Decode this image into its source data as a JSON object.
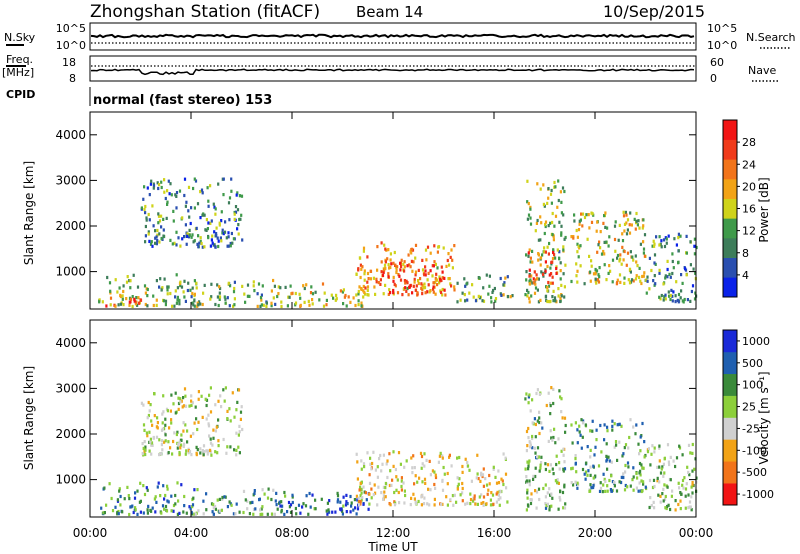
{
  "header": {
    "station": "Zhongshan Station (fitACF)",
    "beam": "Beam 14",
    "date": "10/Sep/2015"
  },
  "noise_panel": {
    "left_label": "N.Sky",
    "left_ticks": [
      "10^5",
      "10^0"
    ],
    "right_ticks": [
      "10^5",
      "10^0"
    ],
    "right_label": "N.Search"
  },
  "freq_panel": {
    "left_label_1": "Freq.",
    "left_label_2": "[MHz]",
    "left_ticks": [
      "18",
      "8"
    ],
    "right_ticks": [
      "60",
      "0"
    ],
    "right_label": "Nave"
  },
  "cpid": {
    "label": "CPID",
    "text": "normal (fast stereo) 153"
  },
  "colors": {
    "power": [
      "#0a22e8",
      "#2a4fb0",
      "#3d7d5a",
      "#3f9a4a",
      "#cfd31a",
      "#f2a316",
      "#f2741a",
      "#f03a1a",
      "#f21414"
    ],
    "velocity": [
      "#f21414",
      "#f2741a",
      "#f2a316",
      "#d0d0d0",
      "#8ccf3a",
      "#3a8a3a",
      "#1f5fb0",
      "#1a2ad8"
    ]
  },
  "chart_data": [
    {
      "type": "heatmap",
      "title": "Power",
      "ylabel": "Slant Range [km]",
      "ylim": [
        180,
        4500
      ],
      "yticks": [
        "1000",
        "2000",
        "3000",
        "4000"
      ],
      "xlim": [
        0,
        24
      ],
      "xticks": [
        "00:00",
        "04:00",
        "08:00",
        "12:00",
        "16:00",
        "20:00",
        "00:00"
      ],
      "colorbar_label": "Power [dB]",
      "colorbar_ticks": [
        "4",
        "8",
        "12",
        "16",
        "20",
        "24",
        "28"
      ],
      "colorbar_range": [
        0,
        32
      ],
      "clusters": [
        {
          "t0": 0.3,
          "t1": 4.2,
          "r0": 200,
          "r1": 900,
          "mean": 13
        },
        {
          "t0": 0.6,
          "t1": 2.0,
          "r0": 200,
          "r1": 450,
          "mean": 26
        },
        {
          "t0": 4.0,
          "t1": 7.5,
          "r0": 200,
          "r1": 800,
          "mean": 13
        },
        {
          "t0": 7.5,
          "t1": 11.0,
          "r0": 200,
          "r1": 700,
          "mean": 16
        },
        {
          "t0": 10.5,
          "t1": 14.5,
          "r0": 450,
          "r1": 1600,
          "mean": 21
        },
        {
          "t0": 11.5,
          "t1": 14.0,
          "r0": 500,
          "r1": 1200,
          "mean": 27
        },
        {
          "t0": 14.5,
          "t1": 16.8,
          "r0": 300,
          "r1": 900,
          "mean": 12
        },
        {
          "t0": 17.2,
          "t1": 18.8,
          "r0": 300,
          "r1": 3000,
          "mean": 14
        },
        {
          "t0": 17.3,
          "t1": 18.6,
          "r0": 700,
          "r1": 1400,
          "mean": 25
        },
        {
          "t0": 19.0,
          "t1": 22.0,
          "r0": 700,
          "r1": 2300,
          "mean": 16
        },
        {
          "t0": 22.0,
          "t1": 24.0,
          "r0": 300,
          "r1": 1800,
          "mean": 10
        },
        {
          "t0": 2.0,
          "t1": 6.0,
          "r0": 1500,
          "r1": 3000,
          "mean": 9
        }
      ]
    },
    {
      "type": "heatmap",
      "title": "Velocity",
      "ylabel": "Slant Range [km]",
      "ylim": [
        180,
        4500
      ],
      "yticks": [
        "1000",
        "2000",
        "3000",
        "4000"
      ],
      "xlim": [
        0,
        24
      ],
      "xticks": [
        "00:00",
        "04:00",
        "08:00",
        "12:00",
        "16:00",
        "20:00",
        "00:00"
      ],
      "xlabel": "Time UT",
      "colorbar_label": "Velocity [m s⁻¹]",
      "colorbar_ticks": [
        "-1000",
        "-500",
        "-100",
        "-25",
        "25",
        "100",
        "500",
        "1000"
      ],
      "colorbar_range": [
        -1200,
        1200
      ],
      "clusters": [
        {
          "t0": 0.3,
          "t1": 4.2,
          "r0": 200,
          "r1": 900,
          "mean": 500
        },
        {
          "t0": 4.0,
          "t1": 7.5,
          "r0": 200,
          "r1": 800,
          "mean": 300
        },
        {
          "t0": 7.5,
          "t1": 11.0,
          "r0": 200,
          "r1": 700,
          "mean": 700
        },
        {
          "t0": 9.5,
          "t1": 11.0,
          "r0": 250,
          "r1": 500,
          "mean": 1100
        },
        {
          "t0": 10.5,
          "t1": 16.5,
          "r0": 400,
          "r1": 1600,
          "mean": -250
        },
        {
          "t0": 17.2,
          "t1": 18.8,
          "r0": 300,
          "r1": 3000,
          "mean": 150
        },
        {
          "t0": 19.0,
          "t1": 22.0,
          "r0": 700,
          "r1": 2300,
          "mean": 350
        },
        {
          "t0": 22.0,
          "t1": 24.0,
          "r0": 300,
          "r1": 1800,
          "mean": 100
        },
        {
          "t0": 2.0,
          "t1": 6.0,
          "r0": 1500,
          "r1": 3000,
          "mean": 0
        }
      ]
    }
  ]
}
